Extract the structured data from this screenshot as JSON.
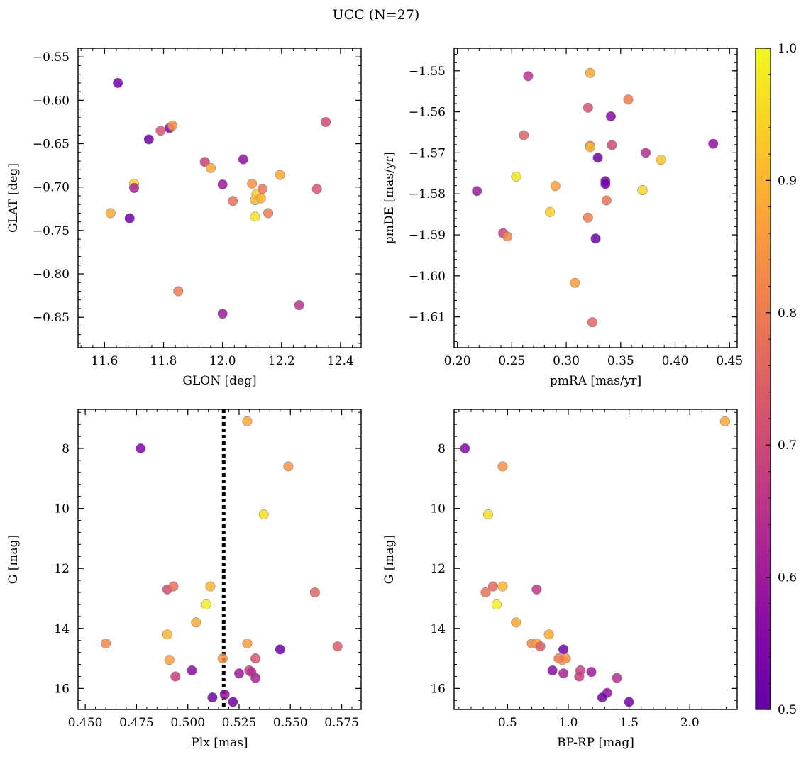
{
  "figure": {
    "title": "UCC (N=27)"
  },
  "colorbar": {
    "range": [
      0.5,
      1.0
    ],
    "ticks": [
      "0.5",
      "0.6",
      "0.7",
      "0.8",
      "0.9",
      "1.0"
    ],
    "colormap": "plasma"
  },
  "chart_data": [
    {
      "type": "scatter",
      "xlabel": "GLON [deg]",
      "ylabel": "GLAT [deg]",
      "xlim": [
        11.51,
        12.47
      ],
      "ylim": [
        -0.885,
        -0.54
      ],
      "xticks": [
        "11.6",
        "11.8",
        "12.0",
        "12.2",
        "12.4"
      ],
      "yticks": [
        "−0.55",
        "−0.60",
        "−0.65",
        "−0.70",
        "−0.75",
        "−0.80",
        "−0.85"
      ],
      "x": [
        11.645,
        11.75,
        11.79,
        11.82,
        11.83,
        11.62,
        11.685,
        11.7,
        11.7,
        11.85,
        11.94,
        11.96,
        12.0,
        12.0,
        12.035,
        12.07,
        12.1,
        12.11,
        12.11,
        12.115,
        12.13,
        12.135,
        12.155,
        12.195,
        12.26,
        12.32,
        12.35
      ],
      "y": [
        -0.58,
        -0.645,
        -0.635,
        -0.632,
        -0.629,
        -0.73,
        -0.736,
        -0.696,
        -0.701,
        -0.82,
        -0.671,
        -0.678,
        -0.697,
        -0.846,
        -0.716,
        -0.668,
        -0.696,
        -0.734,
        -0.715,
        -0.708,
        -0.713,
        -0.702,
        -0.73,
        -0.686,
        -0.836,
        -0.702,
        -0.625
      ],
      "c": [
        0.52,
        0.52,
        0.72,
        0.55,
        0.84,
        0.88,
        0.52,
        0.94,
        0.62,
        0.8,
        0.68,
        0.88,
        0.6,
        0.6,
        0.78,
        0.58,
        0.84,
        0.97,
        0.9,
        0.93,
        0.89,
        0.79,
        0.8,
        0.88,
        0.65,
        0.72,
        0.7
      ]
    },
    {
      "type": "scatter",
      "xlabel": "pmRA [mas/yr]",
      "ylabel": "pmDE [mas/yr]",
      "xlim": [
        0.197,
        0.457
      ],
      "ylim": [
        -1.6175,
        -1.5445
      ],
      "xticks": [
        "0.20",
        "0.25",
        "0.30",
        "0.35",
        "0.40",
        "0.45"
      ],
      "yticks": [
        "−1.55",
        "−1.56",
        "−1.57",
        "−1.58",
        "−1.59",
        "−1.60",
        "−1.61"
      ],
      "x": [
        0.265,
        0.322,
        0.357,
        0.32,
        0.341,
        0.261,
        0.322,
        0.342,
        0.373,
        0.435,
        0.322,
        0.329,
        0.387,
        0.254,
        0.336,
        0.336,
        0.29,
        0.37,
        0.218,
        0.337,
        0.285,
        0.32,
        0.242,
        0.246,
        0.327,
        0.308,
        0.324
      ],
      "y": [
        -1.5513,
        -1.5505,
        -1.557,
        -1.559,
        -1.5611,
        -1.5657,
        -1.5683,
        -1.5681,
        -1.57,
        -1.5678,
        -1.5686,
        -1.5712,
        -1.5717,
        -1.5758,
        -1.5769,
        -1.5776,
        -1.5781,
        -1.5791,
        -1.5793,
        -1.5816,
        -1.5844,
        -1.5858,
        -1.5896,
        -1.5904,
        -1.5909,
        -1.6017,
        -1.6113
      ],
      "c": [
        0.65,
        0.88,
        0.8,
        0.72,
        0.56,
        0.75,
        0.82,
        0.7,
        0.64,
        0.58,
        0.9,
        0.52,
        0.92,
        0.97,
        0.55,
        0.52,
        0.86,
        0.95,
        0.6,
        0.78,
        0.94,
        0.8,
        0.68,
        0.82,
        0.52,
        0.86,
        0.76
      ]
    },
    {
      "type": "scatter",
      "xlabel": "Plx [mas]",
      "ylabel": "G [mag]",
      "xlim": [
        0.4465,
        0.5845
      ],
      "ylim": [
        16.7,
        6.7
      ],
      "y_inverted": true,
      "xticks": [
        "0.450",
        "0.475",
        "0.500",
        "0.525",
        "0.550",
        "0.575"
      ],
      "yticks": [
        "8",
        "10",
        "12",
        "14",
        "16"
      ],
      "vline": 0.5175,
      "x": [
        0.477,
        0.529,
        0.549,
        0.537,
        0.562,
        0.49,
        0.493,
        0.511,
        0.509,
        0.504,
        0.49,
        0.46,
        0.529,
        0.545,
        0.573,
        0.517,
        0.491,
        0.533,
        0.502,
        0.53,
        0.525,
        0.531,
        0.494,
        0.533,
        0.518,
        0.512,
        0.522
      ],
      "y": [
        8.0,
        7.1,
        8.6,
        10.2,
        12.8,
        12.7,
        12.6,
        12.6,
        13.2,
        13.8,
        14.2,
        14.5,
        14.5,
        14.7,
        14.6,
        15.0,
        15.05,
        15.0,
        15.4,
        15.4,
        15.5,
        15.45,
        15.6,
        15.65,
        16.2,
        16.3,
        16.45
      ],
      "c": [
        0.55,
        0.88,
        0.84,
        0.96,
        0.76,
        0.7,
        0.78,
        0.9,
        0.98,
        0.88,
        0.9,
        0.82,
        0.86,
        0.52,
        0.74,
        0.84,
        0.86,
        0.72,
        0.56,
        0.68,
        0.6,
        0.64,
        0.68,
        0.62,
        0.58,
        0.52,
        0.52
      ]
    },
    {
      "type": "scatter",
      "xlabel": "BP-RP [mag]",
      "ylabel": "G [mag]",
      "xlim": [
        0.06,
        2.39
      ],
      "ylim": [
        16.7,
        6.7
      ],
      "y_inverted": true,
      "xticks": [
        "0.5",
        "1.0",
        "1.5",
        "2.0"
      ],
      "yticks": [
        "8",
        "10",
        "12",
        "14",
        "16"
      ],
      "x": [
        0.15,
        2.29,
        0.46,
        0.34,
        0.32,
        0.38,
        0.46,
        0.41,
        0.57,
        0.74,
        0.84,
        0.7,
        0.74,
        0.96,
        0.77,
        0.95,
        0.98,
        0.92,
        0.87,
        1.1,
        1.19,
        0.96,
        1.09,
        1.4,
        1.32,
        1.28,
        1.5
      ],
      "y": [
        8.0,
        7.1,
        8.6,
        10.2,
        12.8,
        12.6,
        12.6,
        13.2,
        13.8,
        12.7,
        14.2,
        14.5,
        14.5,
        14.7,
        14.6,
        15.05,
        15.0,
        15.0,
        15.4,
        15.4,
        15.45,
        15.5,
        15.6,
        15.65,
        16.15,
        16.3,
        16.45
      ],
      "c": [
        0.55,
        0.88,
        0.84,
        0.96,
        0.78,
        0.76,
        0.9,
        0.98,
        0.88,
        0.66,
        0.88,
        0.82,
        0.86,
        0.52,
        0.74,
        0.86,
        0.84,
        0.8,
        0.56,
        0.68,
        0.6,
        0.62,
        0.68,
        0.64,
        0.58,
        0.52,
        0.52
      ]
    }
  ]
}
